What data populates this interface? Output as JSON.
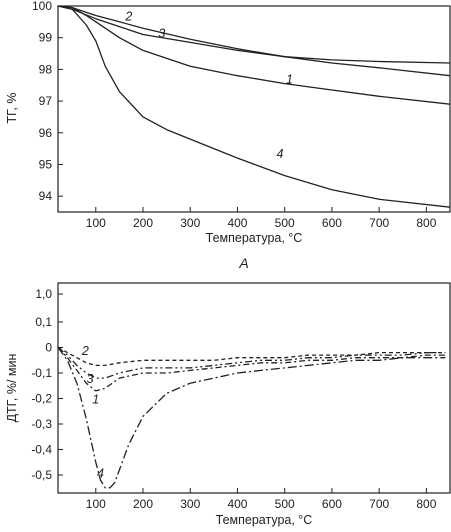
{
  "chart_data": [
    {
      "type": "line",
      "panel": "A",
      "xlabel": "Температура, °C",
      "ylabel": "ТГ, %",
      "xlim": [
        20,
        850
      ],
      "ylim": [
        93.5,
        100
      ],
      "xticks": [
        100,
        200,
        300,
        400,
        500,
        600,
        700,
        800
      ],
      "yticks": [
        94,
        95,
        96,
        97,
        98,
        99,
        100
      ],
      "grid": false,
      "series": [
        {
          "name": "1",
          "label_at": [
            510,
            97.55
          ],
          "x": [
            20,
            50,
            80,
            100,
            150,
            200,
            300,
            400,
            500,
            600,
            700,
            850
          ],
          "y": [
            100,
            99.95,
            99.7,
            99.5,
            99.0,
            98.6,
            98.1,
            97.8,
            97.55,
            97.35,
            97.15,
            96.9
          ]
        },
        {
          "name": "2",
          "label_at": [
            170,
            99.55
          ],
          "x": [
            20,
            50,
            100,
            150,
            200,
            300,
            400,
            500,
            600,
            700,
            850
          ],
          "y": [
            100,
            99.95,
            99.7,
            99.5,
            99.3,
            98.95,
            98.65,
            98.4,
            98.2,
            98.05,
            97.8
          ]
        },
        {
          "name": "3",
          "label_at": [
            240,
            99.0
          ],
          "x": [
            20,
            50,
            100,
            150,
            200,
            300,
            400,
            500,
            600,
            700,
            850
          ],
          "y": [
            100,
            99.9,
            99.6,
            99.35,
            99.1,
            98.85,
            98.6,
            98.4,
            98.3,
            98.25,
            98.2
          ]
        },
        {
          "name": "4",
          "label_at": [
            490,
            95.2
          ],
          "x": [
            20,
            50,
            80,
            100,
            120,
            150,
            200,
            250,
            300,
            400,
            500,
            600,
            700,
            850
          ],
          "y": [
            100,
            99.9,
            99.4,
            98.9,
            98.1,
            97.3,
            96.5,
            96.1,
            95.8,
            95.2,
            94.65,
            94.2,
            93.9,
            93.65
          ]
        }
      ]
    },
    {
      "type": "line",
      "xlabel": "Температура, °C",
      "ylabel": "ДТГ, %/ мин",
      "xlim": [
        20,
        850
      ],
      "ylim": [
        -0.58,
        1.05
      ],
      "xticks": [
        100,
        200,
        300,
        400,
        500,
        600,
        700,
        800
      ],
      "yticks": [
        1.0,
        0.1,
        0,
        -0.1,
        -0.2,
        -0.3,
        -0.4,
        -0.5
      ],
      "ytick_labels": [
        "1,0",
        "0,1",
        "0",
        "-0,1",
        "-0,2",
        "-0,3",
        "-0,4",
        "-0,5"
      ],
      "grid": false,
      "series": [
        {
          "name": "1",
          "label_at": [
            100,
            -0.22
          ],
          "x": [
            20,
            40,
            60,
            80,
            100,
            120,
            150,
            200,
            250,
            300,
            350,
            400,
            450,
            500,
            550,
            600,
            650,
            700,
            750,
            800,
            840
          ],
          "y": [
            0,
            -0.04,
            -0.09,
            -0.14,
            -0.17,
            -0.16,
            -0.12,
            -0.1,
            -0.1,
            -0.09,
            -0.08,
            -0.07,
            -0.06,
            -0.06,
            -0.05,
            -0.05,
            -0.04,
            -0.04,
            -0.04,
            -0.03,
            -0.03
          ]
        },
        {
          "name": "2",
          "label_at": [
            78,
            -0.03
          ],
          "x": [
            20,
            40,
            60,
            80,
            100,
            120,
            150,
            200,
            250,
            300,
            350,
            400,
            450,
            500,
            550,
            600,
            650,
            700,
            750,
            800,
            840
          ],
          "y": [
            0,
            -0.02,
            -0.04,
            -0.06,
            -0.07,
            -0.07,
            -0.06,
            -0.05,
            -0.05,
            -0.05,
            -0.05,
            -0.04,
            -0.04,
            -0.04,
            -0.03,
            -0.03,
            -0.03,
            -0.02,
            -0.02,
            -0.02,
            -0.02
          ]
        },
        {
          "name": "3",
          "label_at": [
            88,
            -0.14
          ],
          "x": [
            20,
            40,
            60,
            80,
            100,
            120,
            150,
            200,
            250,
            300,
            350,
            400,
            450,
            500,
            550,
            600,
            650,
            700,
            750,
            800,
            840
          ],
          "y": [
            0,
            -0.03,
            -0.07,
            -0.1,
            -0.12,
            -0.12,
            -0.1,
            -0.08,
            -0.08,
            -0.08,
            -0.07,
            -0.06,
            -0.05,
            -0.05,
            -0.04,
            -0.04,
            -0.03,
            -0.03,
            -0.03,
            -0.02,
            -0.02
          ]
        },
        {
          "name": "4",
          "label_at": [
            110,
            -0.51
          ],
          "x": [
            20,
            40,
            60,
            80,
            100,
            110,
            120,
            130,
            140,
            150,
            170,
            200,
            250,
            300,
            350,
            400,
            450,
            500,
            550,
            600,
            650,
            700,
            750,
            800,
            840
          ],
          "y": [
            0,
            -0.05,
            -0.14,
            -0.28,
            -0.45,
            -0.52,
            -0.55,
            -0.55,
            -0.53,
            -0.48,
            -0.38,
            -0.27,
            -0.18,
            -0.14,
            -0.12,
            -0.1,
            -0.09,
            -0.08,
            -0.07,
            -0.06,
            -0.05,
            -0.05,
            -0.04,
            -0.04,
            -0.04
          ]
        }
      ]
    }
  ],
  "panel_label_a": "A"
}
